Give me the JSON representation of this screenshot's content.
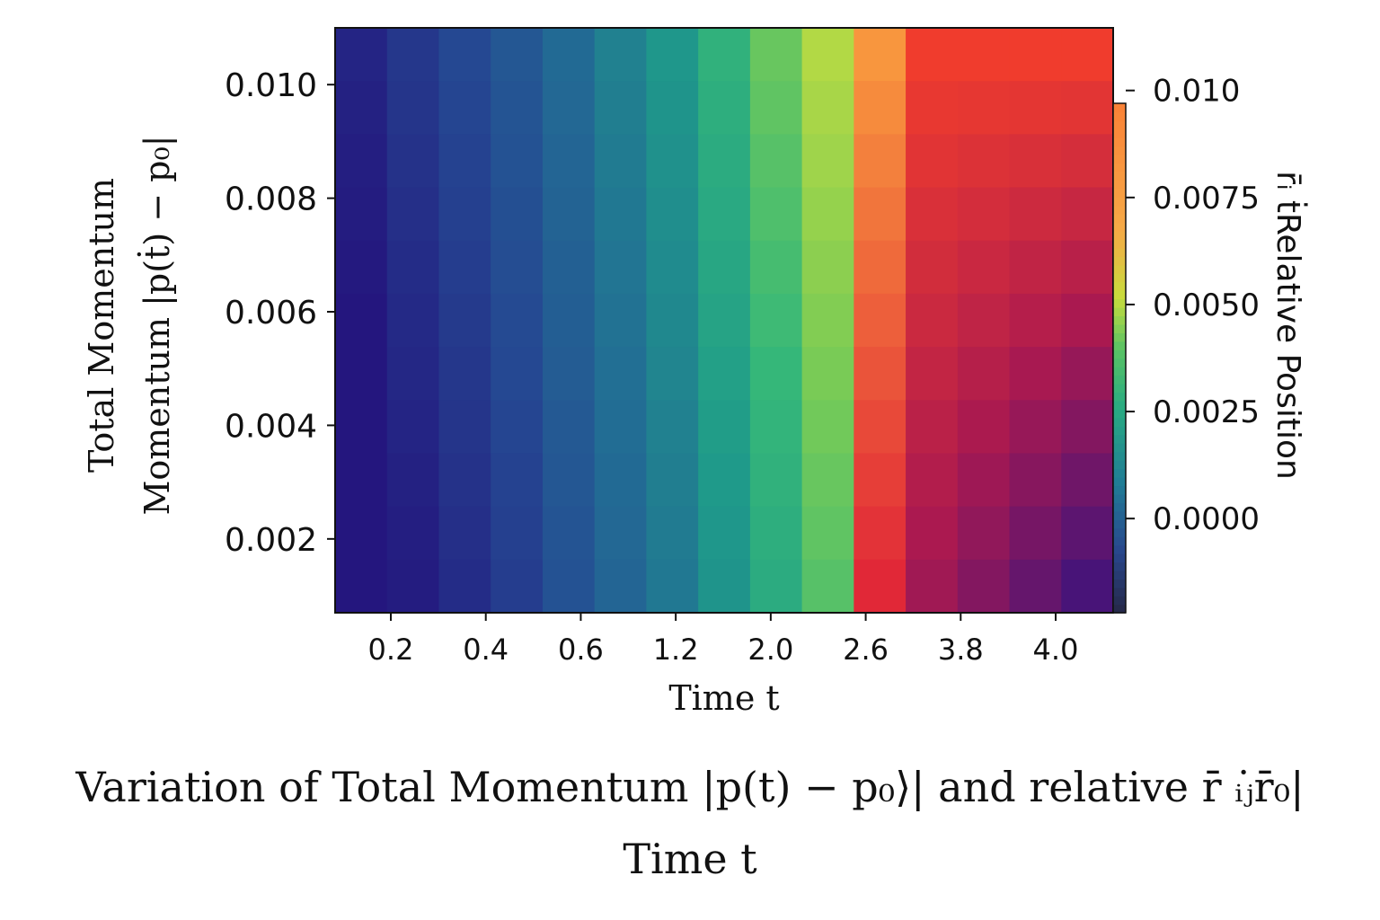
{
  "chart_data": {
    "type": "heatmap",
    "title_line1": "Variation of Total Momentum |p(t) − p₀⟩| and relative r̄ ᵢⱼ̇r̄₀|",
    "title_line2": "Time t",
    "xlabel": "Time t",
    "ylabel_line1": "Total Momentum",
    "ylabel_line2": "Momentum |p(ṫ) − p₀|",
    "x_tick_labels": [
      "0.2",
      "0.4",
      "0.6",
      "1.2",
      "2.0",
      "2.6",
      "3.8",
      "4.0"
    ],
    "y_ticks": [
      0.002,
      0.004,
      0.006,
      0.008,
      0.01
    ],
    "y_tick_labels": [
      "0.002",
      "0.004",
      "0.006",
      "0.008",
      "0.010"
    ],
    "ylim": [
      0.0007,
      0.011
    ],
    "n_columns": 15,
    "n_rows": 11,
    "column_values": [
      0.05,
      0.12,
      0.18,
      0.24,
      0.32,
      0.4,
      0.47,
      0.56,
      0.64,
      0.72,
      0.8,
      0.86,
      0.92,
      0.97,
      1.0
    ],
    "colorbar": {
      "label": "r̄ᵢ ṫRelative Position",
      "ticks": [
        0.0,
        0.0025,
        0.005,
        0.0075,
        0.01
      ],
      "tick_labels": [
        "0.0000",
        "0.0025",
        "0.0050",
        "0.0075",
        "0.010"
      ],
      "range": [
        -0.0022,
        0.0097
      ]
    },
    "colors": {
      "low": "#24237e",
      "mid": "#2aa789",
      "high": "#f3db4e",
      "peak": "#e8302c"
    }
  }
}
